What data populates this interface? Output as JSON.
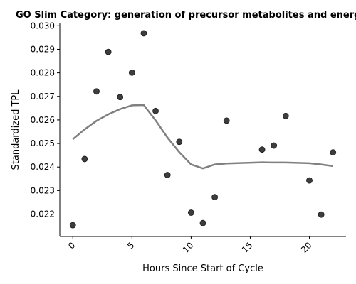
{
  "chart_data": {
    "type": "scatter",
    "title": "GO Slim Category: generation of precursor metabolites and energy",
    "xlabel": "Hours Since Start of Cycle",
    "ylabel": "Standardized TPL",
    "xlim": [
      -1.1,
      23.1
    ],
    "ylim": [
      0.02105,
      0.0301
    ],
    "x_ticks": [
      0,
      5,
      10,
      15,
      20
    ],
    "y_ticks": [
      0.022,
      0.023,
      0.024,
      0.025,
      0.026,
      0.027,
      0.028,
      0.029,
      0.03
    ],
    "x_tick_labels": [
      "0",
      "5",
      "10",
      "15",
      "20"
    ],
    "y_tick_labels": [
      "0.022",
      "0.023",
      "0.024",
      "0.025",
      "0.026",
      "0.027",
      "0.028",
      "0.029",
      "0.030"
    ],
    "grid": false,
    "legend": "none",
    "series": [
      {
        "kind": "scatter",
        "color": "#333333",
        "points": [
          [
            0,
            0.02153
          ],
          [
            1,
            0.02434
          ],
          [
            2,
            0.02721
          ],
          [
            3,
            0.02889
          ],
          [
            4,
            0.02697
          ],
          [
            5,
            0.02801
          ],
          [
            6,
            0.02968
          ],
          [
            7,
            0.02638
          ],
          [
            8,
            0.02366
          ],
          [
            9,
            0.02507
          ],
          [
            10,
            0.02206
          ],
          [
            11,
            0.02162
          ],
          [
            12,
            0.02272
          ],
          [
            13,
            0.02597
          ],
          [
            16,
            0.02474
          ],
          [
            17,
            0.02491
          ],
          [
            18,
            0.02617
          ],
          [
            20,
            0.02343
          ],
          [
            21,
            0.02198
          ],
          [
            22,
            0.02462
          ]
        ]
      },
      {
        "kind": "line",
        "color": "#808080",
        "points": [
          [
            0,
            0.02518
          ],
          [
            1,
            0.0256
          ],
          [
            2,
            0.02596
          ],
          [
            3,
            0.02624
          ],
          [
            4,
            0.02646
          ],
          [
            5,
            0.02662
          ],
          [
            6,
            0.02663
          ],
          [
            7,
            0.02598
          ],
          [
            8,
            0.02525
          ],
          [
            9,
            0.02463
          ],
          [
            10,
            0.02411
          ],
          [
            11,
            0.02394
          ],
          [
            12,
            0.02411
          ],
          [
            13,
            0.02415
          ],
          [
            16,
            0.0242
          ],
          [
            17,
            0.02419
          ],
          [
            18,
            0.02419
          ],
          [
            20,
            0.02416
          ],
          [
            21,
            0.02411
          ],
          [
            22,
            0.02404
          ]
        ]
      }
    ]
  }
}
